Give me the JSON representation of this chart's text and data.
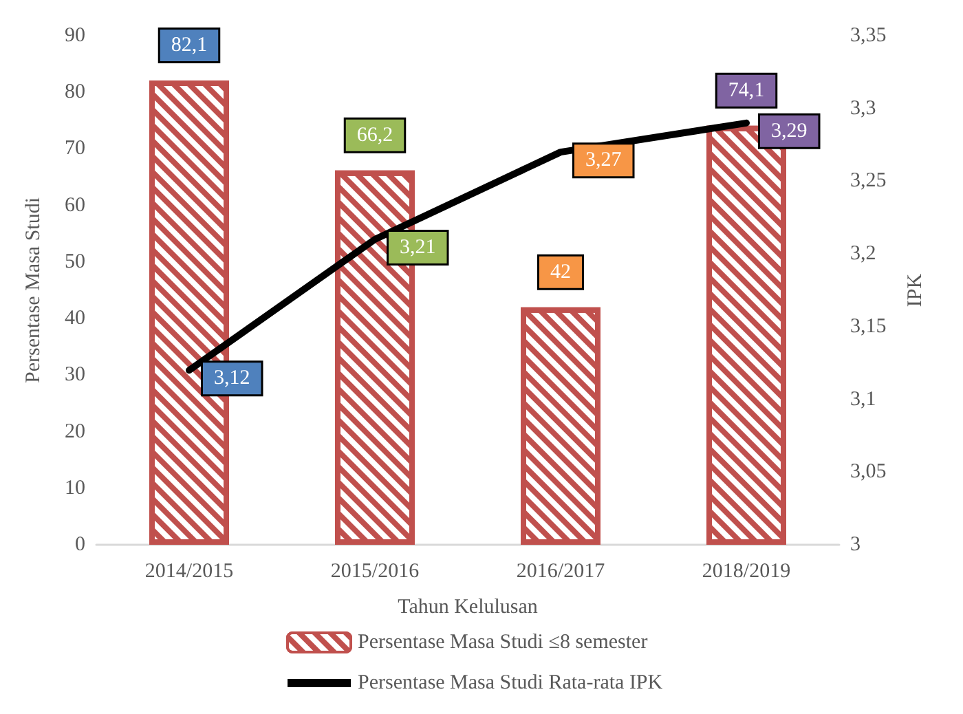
{
  "chart_data": {
    "type": "bar",
    "xlabel": "Tahun Kelulusan",
    "ylabel": "Persentase Masa Studi",
    "y2label": "IPK",
    "categories": [
      "2014/2015",
      "2015/2016",
      "2016/2017",
      "2018/2019"
    ],
    "series": [
      {
        "name": "Persentase Masa Studi ≤8 semester",
        "color": "#c0504d",
        "values": [
          82.1,
          66.2,
          42,
          74.1
        ],
        "value_labels": [
          "82,1",
          "66,2",
          "42",
          "74,1"
        ]
      },
      {
        "name": "Persentase Masa Studi Rata-rata IPK",
        "type": "line",
        "axis": "y2",
        "color": "#000000",
        "values": [
          3.12,
          3.21,
          3.27,
          3.29
        ],
        "value_labels": [
          "3,12",
          "3,21",
          "3,27",
          "3,29"
        ],
        "marker": "none",
        "line_style": "solid"
      }
    ],
    "ylim": [
      0,
      90
    ],
    "yticks": [
      0,
      10,
      20,
      30,
      40,
      50,
      60,
      70,
      80,
      90
    ],
    "y2lim": [
      3,
      3.35
    ],
    "y2ticks": [
      {
        "value": 3,
        "label": "3"
      },
      {
        "value": 3.05,
        "label": "3,05"
      },
      {
        "value": 3.1,
        "label": "3,1"
      },
      {
        "value": 3.15,
        "label": "3,15"
      },
      {
        "value": 3.2,
        "label": "3,2"
      },
      {
        "value": 3.25,
        "label": "3,25"
      },
      {
        "value": 3.3,
        "label": "3,3"
      },
      {
        "value": 3.35,
        "label": "3,35"
      }
    ],
    "grid": false,
    "legend": "bottom"
  }
}
